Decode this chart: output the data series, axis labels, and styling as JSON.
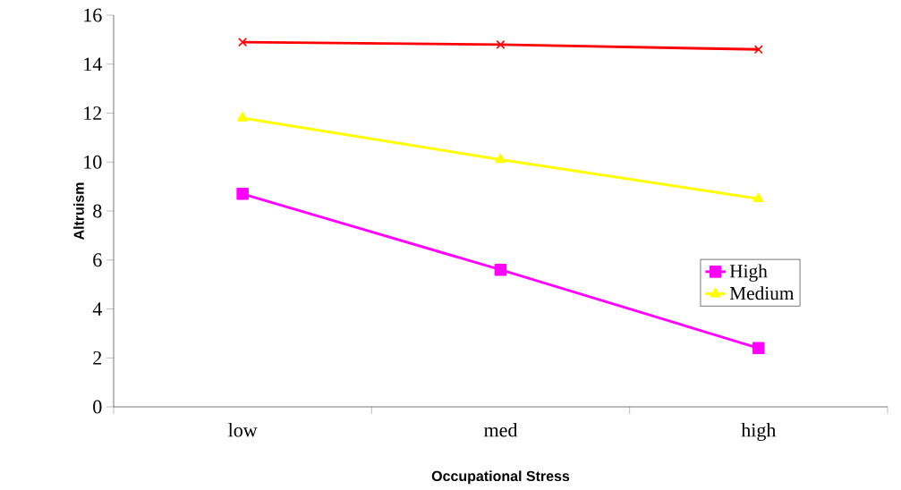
{
  "chart_data": {
    "type": "line",
    "xlabel": "Occupational Stress",
    "ylabel": "Altruism",
    "categories": [
      "low",
      "med",
      "high"
    ],
    "series": [
      {
        "name": "High",
        "color": "#ff00ff",
        "marker": "square",
        "values": [
          8.7,
          5.6,
          2.4
        ]
      },
      {
        "name": "Medium",
        "color": "#ffff00",
        "marker": "triangle",
        "values": [
          11.8,
          10.1,
          8.5
        ]
      },
      {
        "color": "#ff0000",
        "marker": "cross",
        "values": [
          14.9,
          14.8,
          14.6
        ]
      }
    ],
    "ylim": [
      0,
      16
    ],
    "yticks": [
      0,
      2,
      4,
      6,
      8,
      10,
      12,
      14,
      16
    ],
    "grid": false,
    "legend": "right",
    "line_style": "solid"
  }
}
